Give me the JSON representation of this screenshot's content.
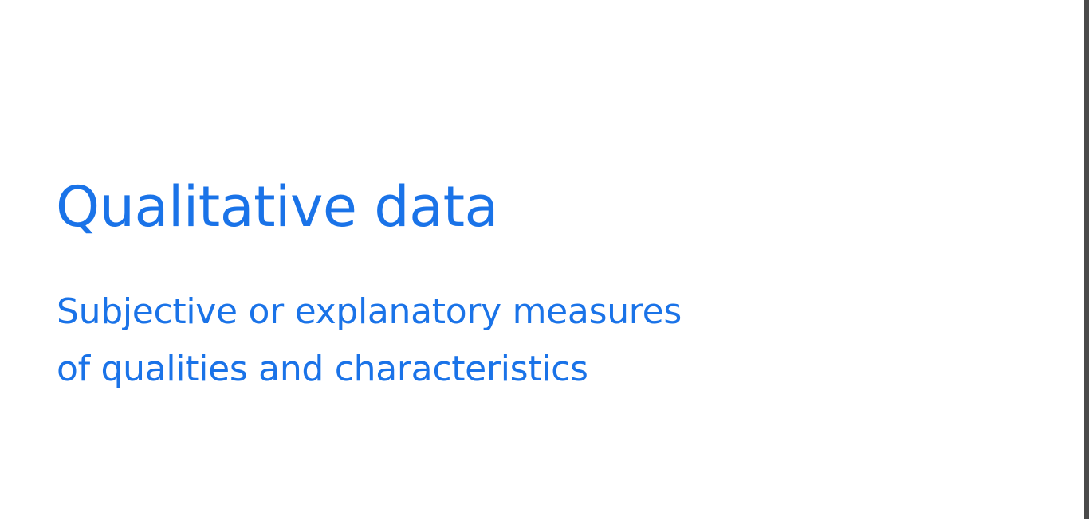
{
  "slide": {
    "title": "Qualitative data",
    "subtitle_lines": [
      "Subjective or explanatory measures",
      "of qualities and characteristics"
    ]
  },
  "colors": {
    "text_accent": "#1a73e8",
    "background": "#ffffff",
    "right_edge": "#4a4a4a"
  }
}
